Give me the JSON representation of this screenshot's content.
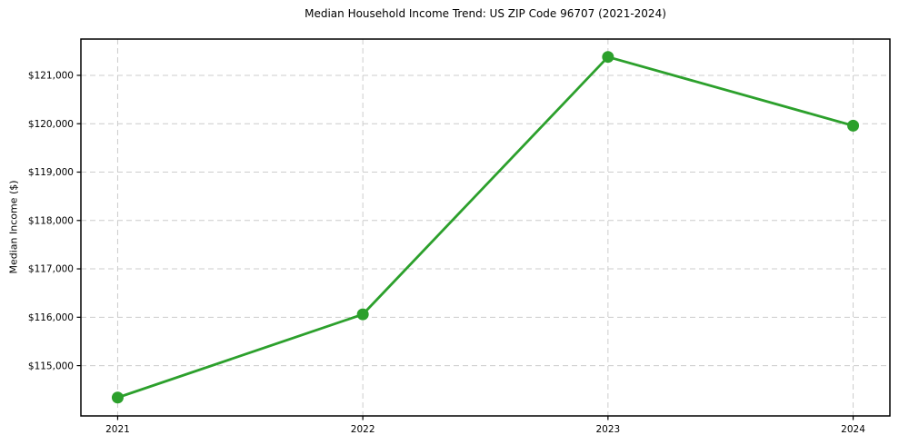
{
  "page": {
    "background_color": "#ffffff"
  },
  "chart_data": {
    "type": "line",
    "title": "Median Household Income Trend: US ZIP Code 96707 (2021-2024)",
    "xlabel": "",
    "ylabel": "Median Income ($)",
    "x": [
      2021,
      2022,
      2023,
      2024
    ],
    "x_tick_labels": [
      "2021",
      "2022",
      "2023",
      "2024"
    ],
    "y_ticks": [
      115000,
      116000,
      117000,
      118000,
      119000,
      120000,
      121000
    ],
    "y_tick_labels": [
      "$115,000",
      "$116,000",
      "$117,000",
      "$118,000",
      "$119,000",
      "$120,000",
      "$121,000"
    ],
    "series": [
      {
        "name": "Median Household Income",
        "values": [
          114340,
          116060,
          121380,
          119960
        ],
        "color": "#2ca02c"
      }
    ],
    "xlim": [
      2020.85,
      2024.15
    ],
    "ylim": [
      113960,
      121750
    ],
    "grid": true,
    "grid_color": "#cccccc",
    "grid_dash": "6,4",
    "spine_color": "#000000",
    "tick_color": "#000000",
    "line_width": 2.8,
    "marker": "circle",
    "marker_radius": 6.5,
    "legend": "none",
    "tick_font_size": 10.5,
    "x_tick_font_size": 10.5
  }
}
